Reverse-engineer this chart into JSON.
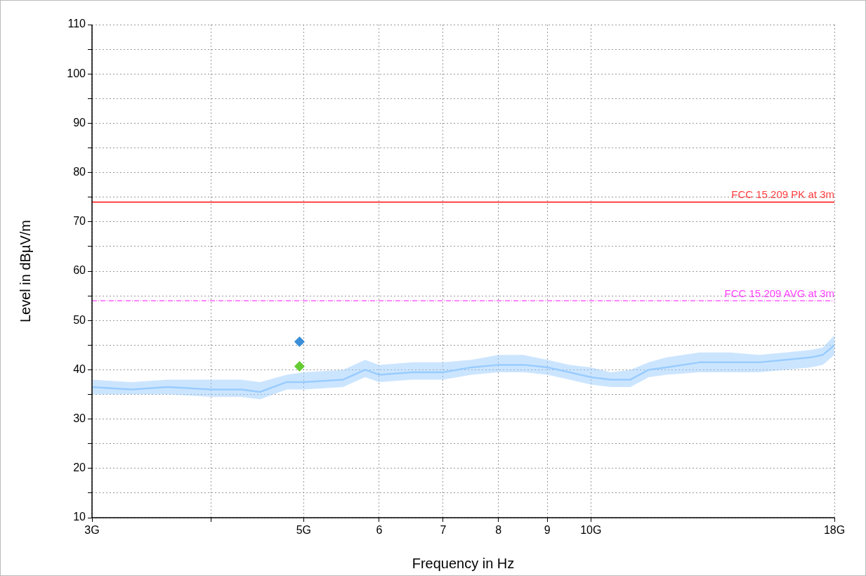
{
  "chart_data": {
    "type": "line",
    "xlabel": "Frequency in Hz",
    "ylabel": "Level in dBµV/m",
    "log": "x",
    "xlim": [
      3,
      18
    ],
    "xticks": [
      {
        "value": 3,
        "label": "3G"
      },
      {
        "value": 4,
        "label": null
      },
      {
        "value": 5,
        "label": "5G"
      },
      6,
      7,
      8,
      9,
      {
        "value": 10,
        "label": "10G"
      },
      {
        "value": 18,
        "label": "18G"
      }
    ],
    "ylim": [
      10,
      110
    ],
    "yticks": [
      10,
      {
        "value": 15,
        "label": null
      },
      20,
      {
        "value": 25,
        "label": null
      },
      30,
      {
        "value": 35,
        "label": null
      },
      40,
      {
        "value": 45,
        "label": null
      },
      50,
      {
        "value": 55,
        "label": null
      },
      60,
      {
        "value": 65,
        "label": null
      },
      70,
      {
        "value": 75,
        "label": null
      },
      80,
      {
        "value": 85,
        "label": null
      },
      90,
      {
        "value": 95,
        "label": null
      },
      100,
      {
        "value": 105,
        "label": null
      },
      110
    ],
    "grid": true,
    "legend": false,
    "series": [
      {
        "color": "#99ccff",
        "marker": "none",
        "x": [
          3,
          3.3,
          3.6,
          4,
          4.3,
          4.5,
          4.8,
          5,
          5.5,
          5.8,
          6,
          6.5,
          7,
          7.5,
          8,
          8.5,
          9,
          9.5,
          10,
          10.5,
          11,
          11.5,
          12,
          13,
          14,
          15,
          16,
          17,
          17.5,
          18
        ],
        "values": [
          36.5,
          36,
          36.5,
          36,
          36,
          35.5,
          37.5,
          37.5,
          38,
          40,
          39,
          39.5,
          39.5,
          40.5,
          41,
          41,
          40.5,
          39.5,
          38.5,
          38,
          38,
          40,
          40.5,
          41.5,
          41.5,
          41.5,
          42,
          42.5,
          43,
          45
        ],
        "lower": [
          35,
          35,
          35,
          34.5,
          34.5,
          34,
          36,
          36,
          36.5,
          38.5,
          37.5,
          38,
          38,
          39,
          39.5,
          39.5,
          39,
          38,
          37,
          36.5,
          36.5,
          38.5,
          39,
          39.5,
          39.5,
          39.5,
          40,
          40.5,
          41,
          43
        ],
        "upper": [
          38,
          37.5,
          38,
          38,
          38,
          37.5,
          39,
          39.5,
          40,
          42,
          41,
          41.5,
          41.5,
          42,
          43,
          43,
          42,
          41,
          40.5,
          39.5,
          40,
          41.5,
          42.5,
          43.5,
          43.5,
          43,
          43.5,
          44,
          44.5,
          47
        ]
      },
      {
        "type": "scatter",
        "color": "#3b8fd8",
        "marker": "diamond",
        "x": [
          4.95
        ],
        "values": [
          45.7
        ]
      },
      {
        "type": "scatter",
        "color": "#66cc33",
        "marker": "diamond",
        "x": [
          4.95
        ],
        "values": [
          40.7
        ]
      }
    ],
    "ref_lines": [
      {
        "axis": "y",
        "value": 74,
        "label": "FCC 15.209 PK at 3m",
        "color": "#ff4040",
        "line_style": "solid"
      },
      {
        "axis": "y",
        "value": 54,
        "label": "FCC 15.209 AVG at 3m",
        "color": "#ff40ff",
        "line_style": "dashed"
      }
    ]
  }
}
